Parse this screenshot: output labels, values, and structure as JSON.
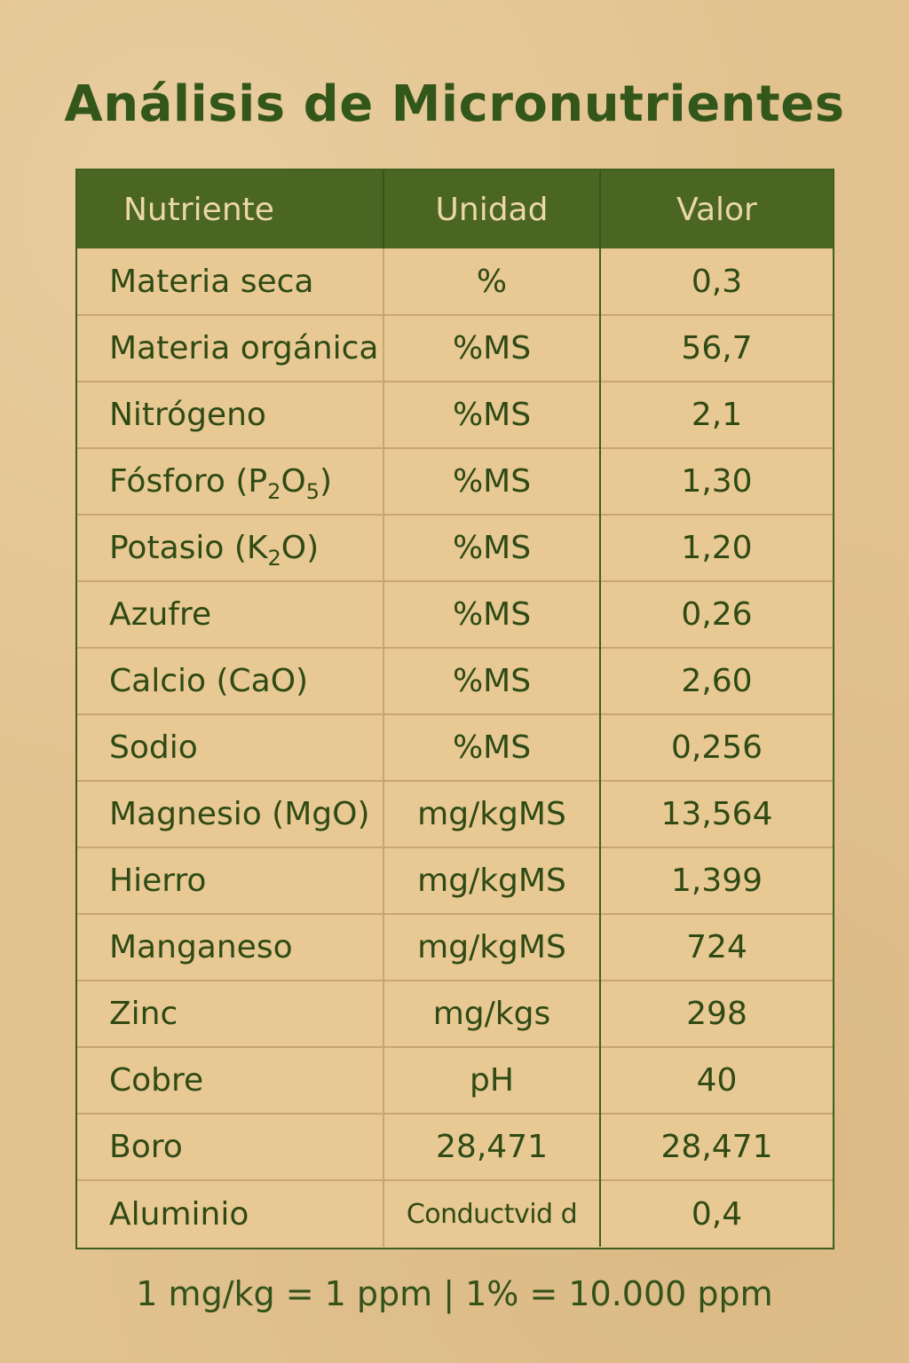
{
  "title": "Análisis de Micronutrientes",
  "table": {
    "headers": [
      "Nutriente",
      "Unidad",
      "Valor"
    ],
    "rows": [
      {
        "nutrient": "Materia seca",
        "unit": "%",
        "value": "0,3"
      },
      {
        "nutrient": "Materia orgánica",
        "unit": "%MS",
        "value": "56,7"
      },
      {
        "nutrient": "Nitrógeno",
        "unit": "%MS",
        "value": "2,1"
      },
      {
        "nutrient": "Fósforo (P",
        "nutrient_sub1": "2",
        "nutrient_mid": "O",
        "nutrient_sub2": "5",
        "nutrient_end": ")",
        "unit": "%MS",
        "value": "1,30"
      },
      {
        "nutrient": "Potasio (K",
        "nutrient_sub1": "2",
        "nutrient_mid": "O)",
        "unit": "%MS",
        "value": "1,20"
      },
      {
        "nutrient": "Azufre",
        "unit": "%MS",
        "value": "0,26"
      },
      {
        "nutrient": "Calcio (CaO)",
        "unit": "%MS",
        "value": "2,60"
      },
      {
        "nutrient": "Sodio",
        "unit": "%MS",
        "value": "0,256"
      },
      {
        "nutrient": "Magnesio (MgO)",
        "unit": "mg/kgMS",
        "value": "13,564"
      },
      {
        "nutrient": "Hierro",
        "unit": "mg/kgMS",
        "value": "1,399"
      },
      {
        "nutrient": "Manganeso",
        "unit": "mg/kgMS",
        "value": "724"
      },
      {
        "nutrient": "Zinc",
        "unit": "mg/kgs",
        "value": "298"
      },
      {
        "nutrient": "Cobre",
        "unit": "pH",
        "value": "40"
      },
      {
        "nutrient": "Boro",
        "unit": "28,471",
        "value": "28,471"
      },
      {
        "nutrient": "Aluminio",
        "unit": "Conductvid d",
        "value": "0,4"
      }
    ]
  },
  "footer": "1 mg/kg = 1 ppm  |  1% = 10.000 ppm"
}
